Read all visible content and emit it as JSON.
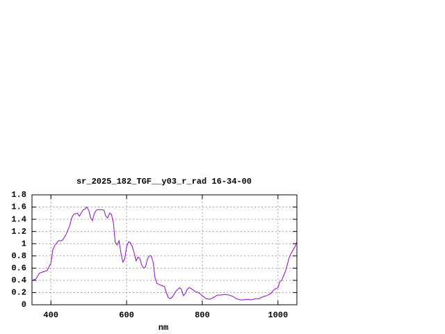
{
  "chart_data": {
    "type": "line",
    "title": "sr_2025_182_TGF__y03_r_rad 16-34-00",
    "x_label": "nm",
    "x": [
      350,
      360,
      370,
      380,
      390,
      400,
      405,
      410,
      420,
      430,
      440,
      450,
      455,
      460,
      470,
      475,
      480,
      485,
      490,
      495,
      500,
      505,
      510,
      515,
      520,
      530,
      540,
      545,
      550,
      555,
      560,
      565,
      570,
      575,
      580,
      585,
      590,
      595,
      600,
      605,
      610,
      615,
      620,
      625,
      630,
      635,
      640,
      645,
      650,
      655,
      660,
      665,
      670,
      675,
      680,
      690,
      700,
      705,
      710,
      715,
      720,
      730,
      740,
      745,
      750,
      755,
      760,
      765,
      770,
      780,
      790,
      800,
      810,
      820,
      830,
      840,
      850,
      860,
      870,
      880,
      890,
      900,
      910,
      920,
      930,
      940,
      950,
      960,
      970,
      980,
      990,
      1000,
      1005,
      1010,
      1015,
      1020,
      1030,
      1040,
      1045,
      1050
    ],
    "series": [
      {
        "color": "#9400d3",
        "values": [
          0.4,
          0.42,
          0.52,
          0.54,
          0.56,
          0.68,
          0.9,
          0.97,
          1.05,
          1.05,
          1.15,
          1.3,
          1.42,
          1.48,
          1.5,
          1.45,
          1.5,
          1.55,
          1.57,
          1.6,
          1.55,
          1.42,
          1.38,
          1.5,
          1.55,
          1.56,
          1.55,
          1.45,
          1.42,
          1.5,
          1.48,
          1.35,
          1.02,
          0.98,
          1.05,
          0.85,
          0.7,
          0.75,
          0.95,
          1.03,
          1.02,
          0.95,
          0.85,
          0.72,
          0.78,
          0.76,
          0.65,
          0.6,
          0.62,
          0.75,
          0.8,
          0.8,
          0.7,
          0.45,
          0.35,
          0.32,
          0.3,
          0.2,
          0.12,
          0.1,
          0.12,
          0.22,
          0.28,
          0.25,
          0.15,
          0.18,
          0.25,
          0.28,
          0.27,
          0.22,
          0.2,
          0.15,
          0.1,
          0.09,
          0.12,
          0.16,
          0.16,
          0.17,
          0.16,
          0.14,
          0.1,
          0.08,
          0.08,
          0.09,
          0.08,
          0.1,
          0.1,
          0.13,
          0.15,
          0.18,
          0.25,
          0.28,
          0.38,
          0.4,
          0.48,
          0.55,
          0.78,
          0.9,
          0.95,
          1.04
        ]
      }
    ],
    "xlim": [
      350,
      1050
    ],
    "xticks": [
      400,
      600,
      800,
      1000
    ],
    "ylim": [
      0,
      1.8
    ],
    "yticks": [
      0,
      0.2,
      0.4,
      0.6,
      0.8,
      1,
      1.2,
      1.4,
      1.6,
      1.8
    ],
    "grid": true
  }
}
